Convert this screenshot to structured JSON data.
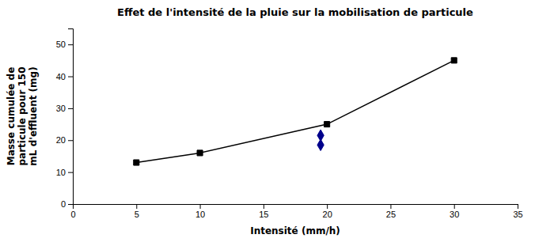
{
  "chart_data": {
    "type": "line",
    "title": "Effet de l'intensité de la pluie sur la mobilisation de particule",
    "xlabel": "Intensité (mm/h)",
    "ylabel": "Masse cumulée de\nparticule pour 150\nmL d'effluent (mg)",
    "series": [
      {
        "type": "line",
        "x": [
          5,
          10,
          20,
          30
        ],
        "values": [
          13,
          16,
          25,
          45
        ],
        "color": "#000000",
        "marker": "square",
        "line_style": "solid"
      },
      {
        "type": "scatter",
        "x": [
          19.5,
          19.5
        ],
        "values": [
          18.5,
          21.5
        ],
        "color": "#00008B",
        "marker": "diamond"
      }
    ],
    "xlim": [
      0,
      35
    ],
    "ylim": [
      0,
      55
    ],
    "xticks": [
      0,
      5,
      10,
      15,
      20,
      25,
      30,
      35
    ],
    "yticks": [
      0,
      10,
      20,
      30,
      40,
      50
    ],
    "grid": false
  }
}
